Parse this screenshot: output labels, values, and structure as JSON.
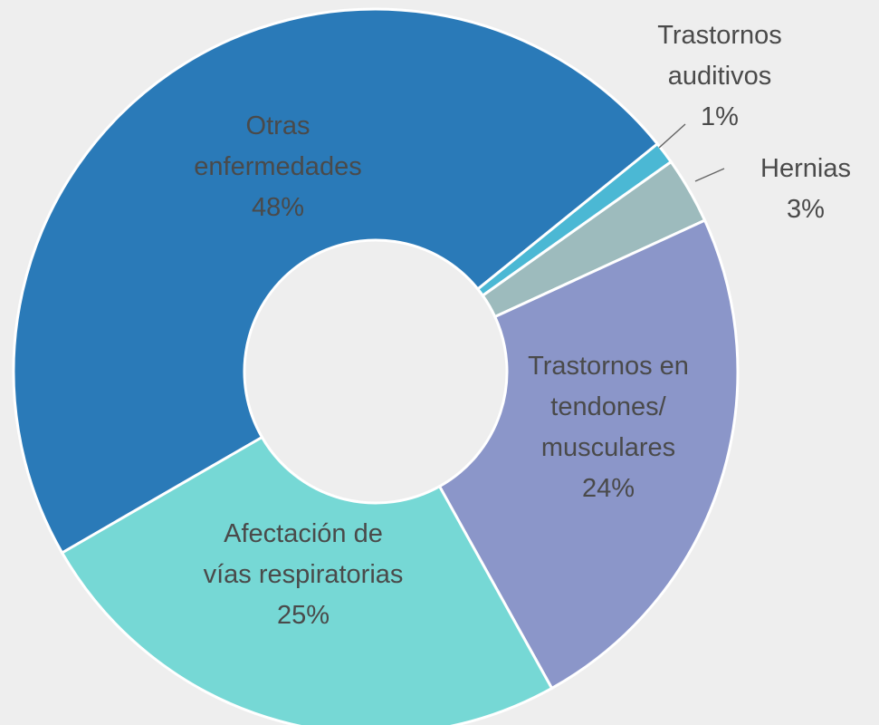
{
  "chart_data": {
    "type": "donut",
    "categories": [
      "Otras enfermedades",
      "Trastornos auditivos",
      "Hernias",
      "Trastornos en tendones/ musculares",
      "Afectación de vías respiratorias"
    ],
    "values": [
      48,
      1,
      3,
      24,
      25
    ],
    "value_labels": [
      "48%",
      "1%",
      "3%",
      "24%",
      "25%"
    ],
    "colors": [
      "#2a7ab8",
      "#4bb8d4",
      "#9dbbbd",
      "#8b96c9",
      "#76d8d5"
    ]
  }
}
